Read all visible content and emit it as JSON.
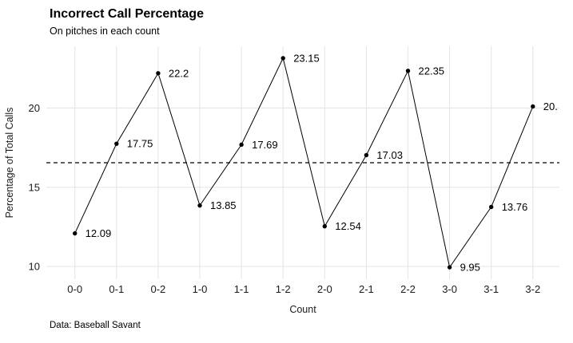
{
  "chart_data": {
    "type": "line",
    "title": "Incorrect Call Percentage",
    "subtitle": "On pitches in each count",
    "caption": "Data: Baseball Savant",
    "xlabel": "Count",
    "ylabel": "Percentage of Total Calls",
    "categories": [
      "0-0",
      "0-1",
      "0-2",
      "1-0",
      "1-1",
      "1-2",
      "2-0",
      "2-1",
      "2-2",
      "3-0",
      "3-1",
      "3-2"
    ],
    "values": [
      12.09,
      17.75,
      22.2,
      13.85,
      17.69,
      23.15,
      12.54,
      17.03,
      22.35,
      9.95,
      13.76,
      20.1
    ],
    "point_labels": [
      "12.09",
      "17.75",
      "22.2",
      "13.85",
      "17.69",
      "23.15",
      "12.54",
      "17.03",
      "22.35",
      "9.95",
      "13.76",
      "20."
    ],
    "yticks": [
      10,
      15,
      20
    ],
    "ylim": [
      9.2,
      23.9
    ],
    "reference_line": {
      "value": 16.55,
      "style": "dashed"
    },
    "grid": true,
    "legend": "none",
    "colors": {
      "line": "#000000",
      "point": "#000000",
      "grid": "#e6e6e6",
      "reference": "#000000",
      "title_text": "#000000",
      "axis_text": "#1a1a1a",
      "background": "#ffffff"
    }
  }
}
